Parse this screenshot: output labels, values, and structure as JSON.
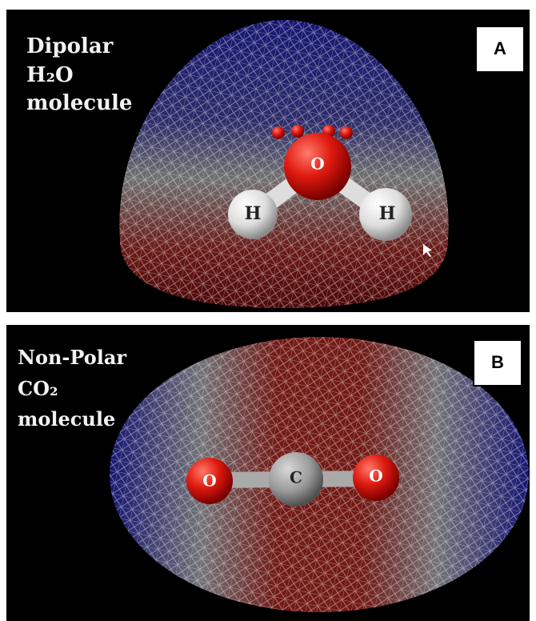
{
  "panels": [
    {
      "label": "A",
      "caption": [
        "Dipolar",
        "H₂O",
        "molecule"
      ],
      "atoms": [
        "O",
        "H",
        "H"
      ]
    },
    {
      "label": "B",
      "caption": [
        "Non-Polar",
        "CO₂",
        "molecule"
      ],
      "atoms": [
        "O",
        "C",
        "O"
      ]
    }
  ]
}
